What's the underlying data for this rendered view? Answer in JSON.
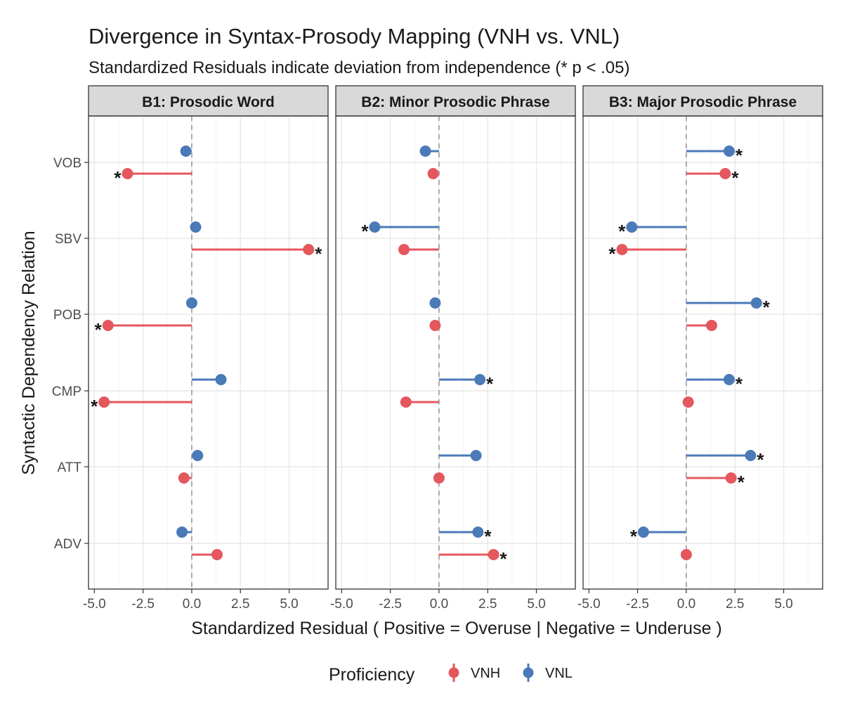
{
  "chart_data": {
    "type": "lollipop",
    "title": "Divergence in Syntax-Prosody Mapping (VNH vs. VNL)",
    "subtitle": "Standardized Residuals indicate deviation from independence (* p < .05)",
    "xlabel": "Standardized Residual ( Positive = Overuse | Negative = Underuse )",
    "ylabel": "Syntactic Dependency Relation",
    "xlim": [
      -5.3,
      7.0
    ],
    "x_ticks": [
      -5.0,
      -2.5,
      0.0,
      2.5,
      5.0
    ],
    "x_tick_labels": [
      "-5.0",
      "-2.5",
      "0.0",
      "2.5",
      "5.0"
    ],
    "categories": [
      "VOB",
      "SBV",
      "POB",
      "CMP",
      "ATT",
      "ADV"
    ],
    "legend": {
      "title": "Proficiency",
      "items": [
        {
          "label": "VNH",
          "color": "#e4575d"
        },
        {
          "label": "VNL",
          "color": "#4a7ab8"
        }
      ]
    },
    "significance_marker": "*",
    "colors": {
      "VNH": "#e4575d",
      "VNL": "#4a7ab8"
    },
    "panels": [
      {
        "label": "B1: Prosodic Word",
        "series": [
          {
            "name": "VNL",
            "values": [
              -0.3,
              0.2,
              0.0,
              1.5,
              0.3,
              -0.5
            ],
            "significant": [
              false,
              false,
              false,
              false,
              false,
              false
            ]
          },
          {
            "name": "VNH",
            "values": [
              -3.3,
              6.0,
              -4.3,
              -4.5,
              -0.4,
              1.3
            ],
            "significant": [
              true,
              true,
              true,
              true,
              false,
              false
            ]
          }
        ]
      },
      {
        "label": "B2: Minor Prosodic Phrase",
        "series": [
          {
            "name": "VNL",
            "values": [
              -0.7,
              -3.3,
              -0.2,
              2.1,
              1.9,
              2.0
            ],
            "significant": [
              false,
              true,
              false,
              true,
              false,
              true
            ]
          },
          {
            "name": "VNH",
            "values": [
              -0.3,
              -1.8,
              -0.2,
              -1.7,
              0.0,
              2.8
            ],
            "significant": [
              false,
              false,
              false,
              false,
              false,
              true
            ]
          }
        ]
      },
      {
        "label": "B3: Major Prosodic Phrase",
        "series": [
          {
            "name": "VNL",
            "values": [
              2.2,
              -2.8,
              3.6,
              2.2,
              3.3,
              -2.2
            ],
            "significant": [
              true,
              true,
              true,
              true,
              true,
              true
            ]
          },
          {
            "name": "VNH",
            "values": [
              2.0,
              -3.3,
              1.3,
              0.1,
              2.3,
              0.0
            ],
            "significant": [
              true,
              true,
              false,
              false,
              true,
              false
            ]
          }
        ]
      }
    ]
  }
}
